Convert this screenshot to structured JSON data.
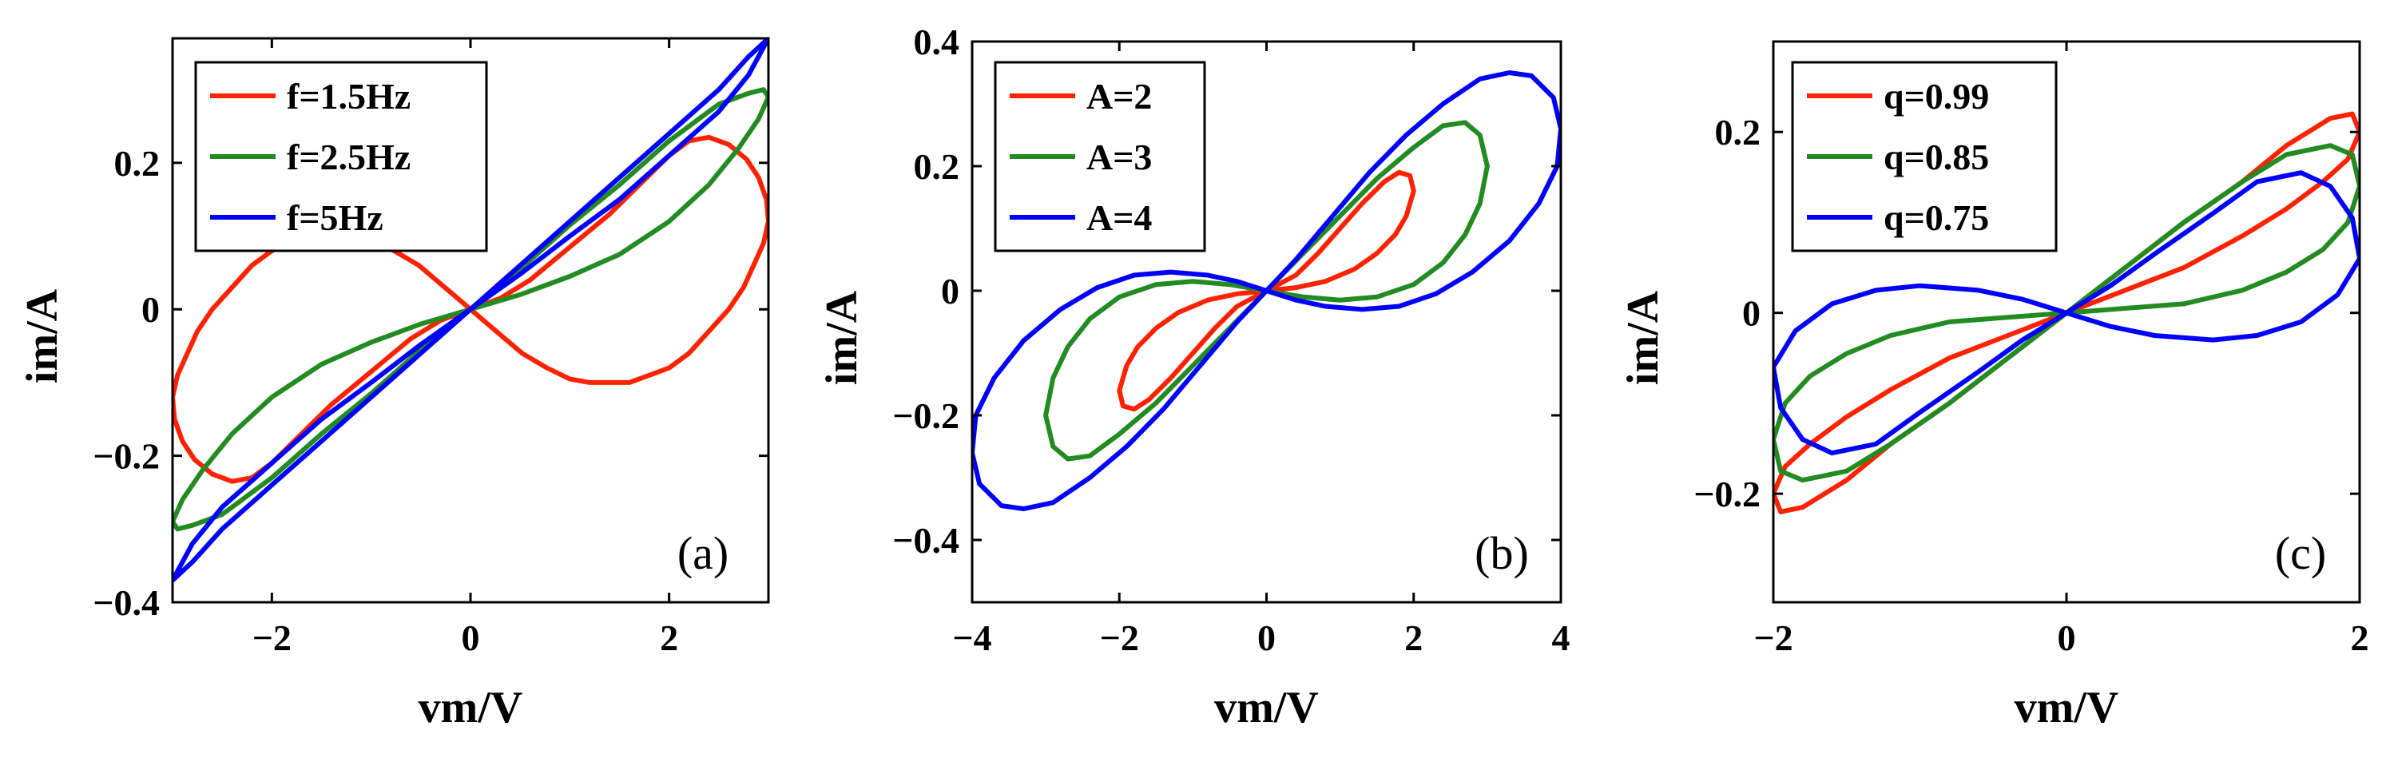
{
  "chart_data": [
    {
      "type": "line",
      "panel_label": "(a)",
      "xlabel": "vm/V",
      "ylabel": "im/A",
      "xlim": [
        -3,
        3
      ],
      "ylim": [
        -0.4,
        0.37
      ],
      "xticks": [
        -2,
        0,
        2
      ],
      "xtick_labels": [
        "−2",
        "0",
        "2"
      ],
      "yticks": [
        -0.4,
        -0.2,
        0,
        0.2
      ],
      "ytick_labels": [
        "−0.4",
        "−0.2",
        "0",
        "0.2"
      ],
      "legend_position": "top-left",
      "series": [
        {
          "name": "f=1.5Hz",
          "color": "#ff2200",
          "x": [
            0,
            0.26,
            0.52,
            0.77,
            1.0,
            1.2,
            1.4,
            1.6,
            1.8,
            2.0,
            2.2,
            2.4,
            2.6,
            2.75,
            2.85,
            2.95,
            3.0,
            2.98,
            2.9,
            2.78,
            2.6,
            2.4,
            2.2,
            2.0,
            1.7,
            1.4,
            1.0,
            0.6,
            0.3,
            0,
            -0.26,
            -0.52,
            -0.77,
            -1.0,
            -1.2,
            -1.4,
            -1.6,
            -1.8,
            -2.0,
            -2.2,
            -2.4,
            -2.6,
            -2.75,
            -2.85,
            -2.95,
            -3.0,
            -2.98,
            -2.9,
            -2.78,
            -2.6,
            -2.4,
            -2.2,
            -2.0,
            -1.7,
            -1.4,
            -1.0,
            -0.6,
            -0.3,
            0
          ],
          "y": [
            0,
            -0.03,
            -0.06,
            -0.08,
            -0.095,
            -0.1,
            -0.1,
            -0.1,
            -0.09,
            -0.08,
            -0.06,
            -0.03,
            0.0,
            0.03,
            0.06,
            0.09,
            0.12,
            0.15,
            0.18,
            0.205,
            0.225,
            0.235,
            0.23,
            0.21,
            0.17,
            0.13,
            0.085,
            0.04,
            0.015,
            0,
            0.03,
            0.06,
            0.08,
            0.095,
            0.1,
            0.1,
            0.1,
            0.09,
            0.08,
            0.06,
            0.03,
            0.0,
            -0.03,
            -0.06,
            -0.09,
            -0.12,
            -0.15,
            -0.18,
            -0.205,
            -0.225,
            -0.235,
            -0.23,
            -0.21,
            -0.17,
            -0.13,
            -0.085,
            -0.04,
            -0.015,
            0
          ]
        },
        {
          "name": "f=2.5Hz",
          "color": "#228b22",
          "x": [
            0,
            0.5,
            1.0,
            1.5,
            2.0,
            2.4,
            2.7,
            2.9,
            3.0,
            2.95,
            2.8,
            2.5,
            2.0,
            1.5,
            1.0,
            0.5,
            0,
            -0.5,
            -1.0,
            -1.5,
            -2.0,
            -2.4,
            -2.7,
            -2.9,
            -3.0,
            -2.95,
            -2.8,
            -2.5,
            -2.0,
            -1.5,
            -1.0,
            -0.5,
            0
          ],
          "y": [
            0,
            0.02,
            0.045,
            0.075,
            0.12,
            0.17,
            0.22,
            0.26,
            0.29,
            0.3,
            0.295,
            0.28,
            0.23,
            0.17,
            0.115,
            0.055,
            0,
            -0.02,
            -0.045,
            -0.075,
            -0.12,
            -0.17,
            -0.22,
            -0.26,
            -0.29,
            -0.3,
            -0.295,
            -0.28,
            -0.23,
            -0.17,
            -0.115,
            -0.055,
            0
          ]
        },
        {
          "name": "f=5Hz",
          "color": "#0000ff",
          "x": [
            0,
            0.5,
            1.0,
            1.5,
            2.0,
            2.5,
            2.8,
            3.0,
            2.8,
            2.5,
            2.0,
            1.5,
            1.0,
            0.5,
            0,
            -0.5,
            -1.0,
            -1.5,
            -2.0,
            -2.5,
            -2.8,
            -3.0,
            -2.8,
            -2.5,
            -2.0,
            -1.5,
            -1.0,
            -0.5,
            0
          ],
          "y": [
            0,
            0.048,
            0.1,
            0.15,
            0.21,
            0.27,
            0.32,
            0.37,
            0.345,
            0.3,
            0.24,
            0.18,
            0.12,
            0.06,
            0,
            -0.048,
            -0.1,
            -0.15,
            -0.21,
            -0.27,
            -0.32,
            -0.37,
            -0.345,
            -0.3,
            -0.24,
            -0.18,
            -0.12,
            -0.06,
            0
          ]
        }
      ]
    },
    {
      "type": "line",
      "panel_label": "(b)",
      "xlabel": "vm/V",
      "ylabel": "im/A",
      "xlim": [
        -4,
        4
      ],
      "ylim": [
        -0.5,
        0.4
      ],
      "xticks": [
        -4,
        -2,
        0,
        2,
        4
      ],
      "xtick_labels": [
        "−4",
        "−2",
        "0",
        "2",
        "4"
      ],
      "yticks": [
        -0.4,
        -0.2,
        0,
        0.2,
        0.4
      ],
      "ytick_labels": [
        "−0.4",
        "−0.2",
        "0",
        "0.2",
        "0.4"
      ],
      "legend_position": "top-left",
      "series": [
        {
          "name": "A=2",
          "color": "#ff2200",
          "x": [
            0,
            0.4,
            0.8,
            1.2,
            1.5,
            1.75,
            1.9,
            2.0,
            1.95,
            1.8,
            1.6,
            1.3,
            1.0,
            0.7,
            0.4,
            0,
            -0.4,
            -0.8,
            -1.2,
            -1.5,
            -1.75,
            -1.9,
            -2.0,
            -1.95,
            -1.8,
            -1.6,
            -1.3,
            -1.0,
            -0.7,
            -0.4,
            0
          ],
          "y": [
            0,
            0.005,
            0.015,
            0.035,
            0.06,
            0.09,
            0.12,
            0.16,
            0.185,
            0.19,
            0.175,
            0.14,
            0.1,
            0.06,
            0.025,
            0,
            -0.005,
            -0.015,
            -0.035,
            -0.06,
            -0.09,
            -0.12,
            -0.16,
            -0.185,
            -0.19,
            -0.175,
            -0.14,
            -0.1,
            -0.06,
            -0.025,
            0
          ]
        },
        {
          "name": "A=3",
          "color": "#228b22",
          "x": [
            0,
            0.5,
            1.0,
            1.5,
            2.0,
            2.4,
            2.7,
            2.9,
            3.0,
            2.9,
            2.7,
            2.4,
            2.0,
            1.5,
            1.0,
            0.5,
            0,
            -0.5,
            -1.0,
            -1.5,
            -2.0,
            -2.4,
            -2.7,
            -2.9,
            -3.0,
            -2.9,
            -2.7,
            -2.4,
            -2.0,
            -1.5,
            -1.0,
            -0.5,
            0
          ],
          "y": [
            0,
            -0.01,
            -0.015,
            -0.01,
            0.01,
            0.045,
            0.09,
            0.14,
            0.2,
            0.25,
            0.27,
            0.265,
            0.23,
            0.18,
            0.12,
            0.06,
            0,
            0.01,
            0.015,
            0.01,
            -0.01,
            -0.045,
            -0.09,
            -0.14,
            -0.2,
            -0.25,
            -0.27,
            -0.265,
            -0.23,
            -0.18,
            -0.12,
            -0.06,
            0
          ]
        },
        {
          "name": "A=4",
          "color": "#0000ff",
          "x": [
            0,
            0.4,
            0.8,
            1.3,
            1.8,
            2.3,
            2.8,
            3.3,
            3.7,
            3.95,
            4.0,
            3.9,
            3.6,
            3.3,
            2.9,
            2.4,
            1.9,
            1.4,
            0.9,
            0.4,
            0,
            -0.4,
            -0.8,
            -1.3,
            -1.8,
            -2.3,
            -2.8,
            -3.3,
            -3.7,
            -3.95,
            -4.0,
            -3.9,
            -3.6,
            -3.3,
            -2.9,
            -2.4,
            -1.9,
            -1.4,
            -0.9,
            -0.4,
            0
          ],
          "y": [
            0,
            -0.015,
            -0.025,
            -0.03,
            -0.025,
            -0.005,
            0.03,
            0.08,
            0.14,
            0.2,
            0.26,
            0.31,
            0.345,
            0.35,
            0.34,
            0.3,
            0.25,
            0.19,
            0.12,
            0.05,
            0,
            0.015,
            0.025,
            0.03,
            0.025,
            0.005,
            -0.03,
            -0.08,
            -0.14,
            -0.2,
            -0.26,
            -0.31,
            -0.345,
            -0.35,
            -0.34,
            -0.3,
            -0.25,
            -0.19,
            -0.12,
            -0.05,
            0
          ]
        }
      ]
    },
    {
      "type": "line",
      "panel_label": "(c)",
      "xlabel": "vm/V",
      "ylabel": "im/A",
      "xlim": [
        -2,
        2
      ],
      "ylim": [
        -0.32,
        0.3
      ],
      "xticks": [
        -2,
        0,
        2
      ],
      "xtick_labels": [
        "−2",
        "0",
        "2"
      ],
      "yticks": [
        -0.2,
        0,
        0.2
      ],
      "ytick_labels": [
        "−0.2",
        "0",
        "0.2"
      ],
      "legend_position": "top-left",
      "series": [
        {
          "name": "q=0.99",
          "color": "#ff2200",
          "x": [
            0,
            0.4,
            0.8,
            1.2,
            1.5,
            1.75,
            1.92,
            2.0,
            1.95,
            1.8,
            1.5,
            1.2,
            0.8,
            0.4,
            0,
            -0.4,
            -0.8,
            -1.2,
            -1.5,
            -1.75,
            -1.92,
            -2.0,
            -1.95,
            -1.8,
            -1.5,
            -1.2,
            -0.8,
            -0.4,
            0
          ],
          "y": [
            0,
            0.025,
            0.05,
            0.085,
            0.115,
            0.145,
            0.17,
            0.2,
            0.22,
            0.215,
            0.185,
            0.145,
            0.1,
            0.05,
            0,
            -0.025,
            -0.05,
            -0.085,
            -0.115,
            -0.145,
            -0.17,
            -0.2,
            -0.22,
            -0.215,
            -0.185,
            -0.145,
            -0.1,
            -0.05,
            0
          ]
        },
        {
          "name": "q=0.85",
          "color": "#228b22",
          "x": [
            0,
            0.4,
            0.8,
            1.2,
            1.5,
            1.75,
            1.92,
            2.0,
            1.95,
            1.8,
            1.5,
            1.2,
            0.8,
            0.4,
            0,
            -0.4,
            -0.8,
            -1.2,
            -1.5,
            -1.75,
            -1.92,
            -2.0,
            -1.95,
            -1.8,
            -1.5,
            -1.2,
            -0.8,
            -0.4,
            0
          ],
          "y": [
            0,
            0.005,
            0.01,
            0.025,
            0.045,
            0.07,
            0.1,
            0.14,
            0.175,
            0.185,
            0.175,
            0.145,
            0.1,
            0.05,
            0,
            -0.005,
            -0.01,
            -0.025,
            -0.045,
            -0.07,
            -0.1,
            -0.14,
            -0.175,
            -0.185,
            -0.175,
            -0.145,
            -0.1,
            -0.05,
            0
          ]
        },
        {
          "name": "q=0.75",
          "color": "#0000ff",
          "x": [
            0,
            0.3,
            0.6,
            1.0,
            1.3,
            1.6,
            1.85,
            2.0,
            1.95,
            1.8,
            1.6,
            1.3,
            1.0,
            0.6,
            0.3,
            0,
            -0.3,
            -0.6,
            -1.0,
            -1.3,
            -1.6,
            -1.85,
            -2.0,
            -1.95,
            -1.8,
            -1.6,
            -1.3,
            -1.0,
            -0.6,
            -0.3,
            0
          ],
          "y": [
            0,
            -0.015,
            -0.025,
            -0.03,
            -0.025,
            -0.01,
            0.02,
            0.06,
            0.105,
            0.14,
            0.155,
            0.145,
            0.11,
            0.065,
            0.03,
            0,
            0.015,
            0.025,
            0.03,
            0.025,
            0.01,
            -0.02,
            -0.06,
            -0.105,
            -0.14,
            -0.155,
            -0.145,
            -0.11,
            -0.065,
            -0.03,
            0
          ]
        }
      ]
    }
  ]
}
